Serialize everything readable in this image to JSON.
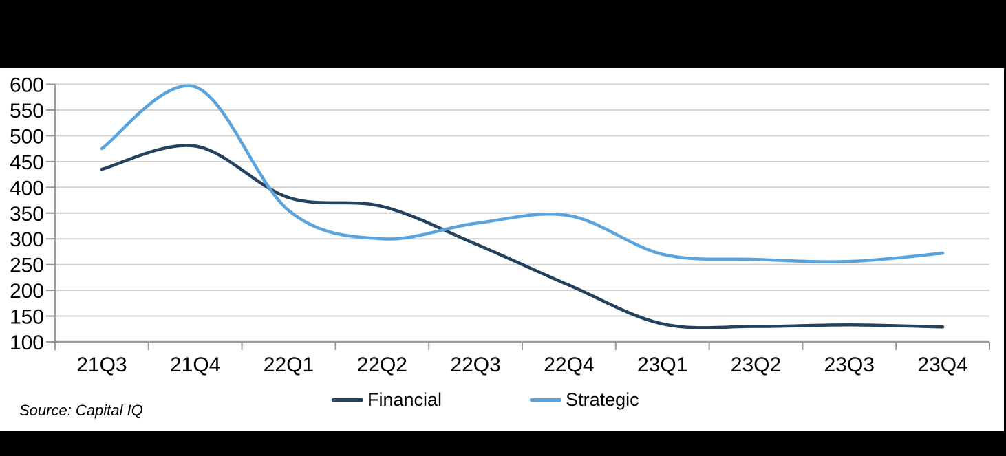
{
  "source_text": "Source: Capital IQ",
  "chart_data": {
    "type": "line",
    "smoothed": true,
    "title": "",
    "xlabel": "",
    "ylabel": "",
    "categories": [
      "21Q3",
      "21Q4",
      "22Q1",
      "22Q2",
      "22Q3",
      "22Q4",
      "23Q1",
      "23Q2",
      "23Q3",
      "23Q4"
    ],
    "series": [
      {
        "name": "Financial",
        "color": "#24425E",
        "values": [
          435,
          480,
          380,
          363,
          290,
          210,
          135,
          130,
          133,
          129
        ]
      },
      {
        "name": "Strategic",
        "color": "#5BA3DC",
        "values": [
          475,
          595,
          355,
          300,
          330,
          345,
          270,
          260,
          256,
          272
        ]
      }
    ],
    "ylim": [
      100,
      600
    ],
    "ytick_step": 50,
    "grid": true,
    "legend_position": "bottom",
    "gridline_color": "#D2D2D2",
    "axis_color": "#9B9B9B",
    "tick_label_color": "#000000"
  }
}
